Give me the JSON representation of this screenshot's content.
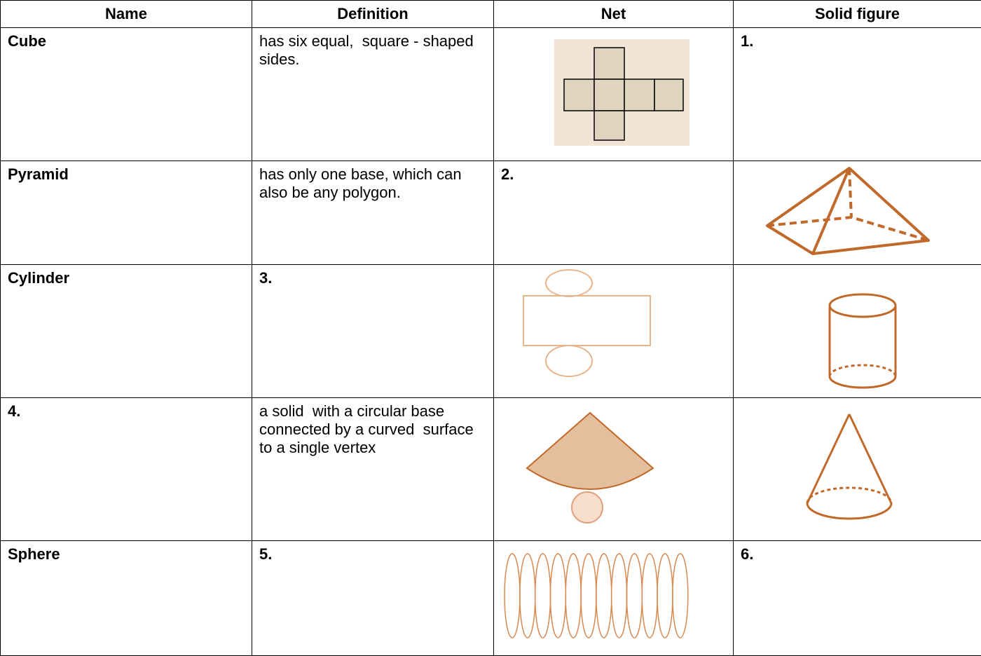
{
  "table": {
    "headers": [
      "Name",
      "Definition",
      "Net",
      "Solid figure"
    ],
    "rows": [
      {
        "name": "Cube",
        "definition": "has six equal,  square - shaped sides.",
        "solid": "1."
      },
      {
        "name": "Pyramid",
        "definition": "has only one base, which can also be any polygon.",
        "net": "2."
      },
      {
        "name": "Cylinder",
        "definition": "3."
      },
      {
        "name": "4.",
        "definition": "a solid  with a circular base connected by a curved  surface to a single vertex"
      },
      {
        "name": "Sphere",
        "definition": "5.",
        "solid": "6."
      }
    ]
  }
}
